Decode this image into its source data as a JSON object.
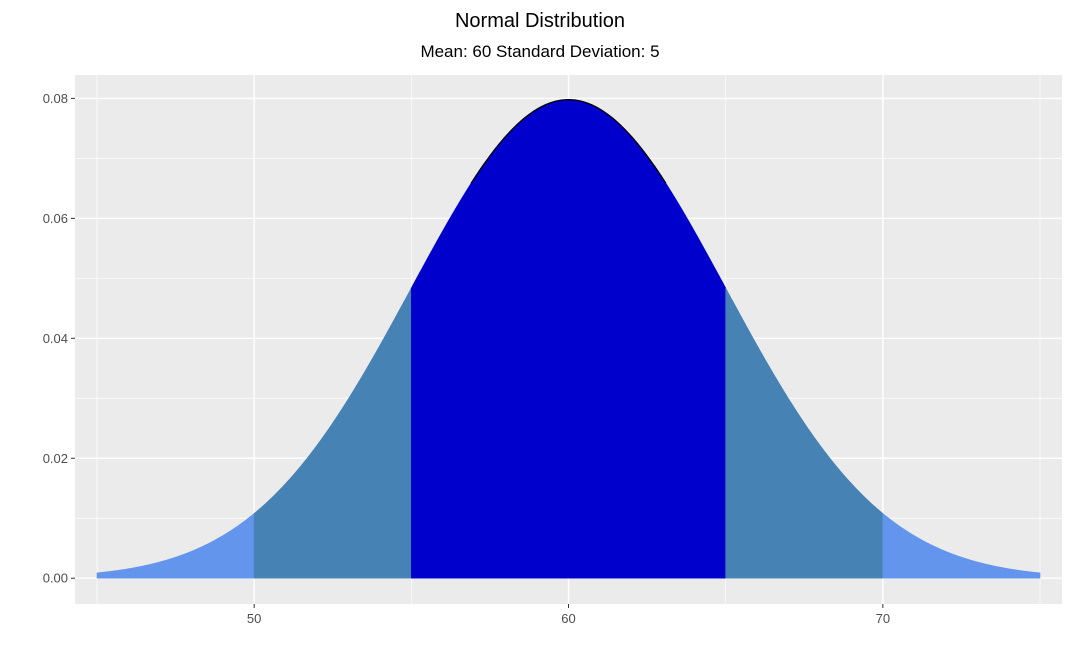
{
  "chart_data": {
    "type": "area",
    "title": "Normal Distribution",
    "subtitle": "Mean: 60 Standard Deviation: 5",
    "xlabel": "",
    "ylabel": "",
    "distribution": {
      "mean": 60,
      "sd": 5
    },
    "xlim": [
      44.3,
      75.7
    ],
    "ylim": [
      -0.0043,
      0.0839
    ],
    "x_ticks": [
      50,
      60,
      70
    ],
    "x_tick_labels": [
      "50",
      "60",
      "70"
    ],
    "y_ticks": [
      0,
      0.02,
      0.04,
      0.06,
      0.08
    ],
    "y_tick_labels": [
      "0.00",
      "0.02",
      "0.04",
      "0.06",
      "0.08"
    ],
    "grid": true,
    "background": "#EBEBEB",
    "curve_color": "#000000",
    "shaded_regions": [
      {
        "from": 45,
        "to": 50,
        "color": "#6495ED"
      },
      {
        "from": 50,
        "to": 55,
        "color": "#4682B4"
      },
      {
        "from": 55,
        "to": 65,
        "color": "#0000CD"
      },
      {
        "from": 65,
        "to": 70,
        "color": "#4682B4"
      },
      {
        "from": 70,
        "to": 75,
        "color": "#6495ED"
      }
    ]
  }
}
